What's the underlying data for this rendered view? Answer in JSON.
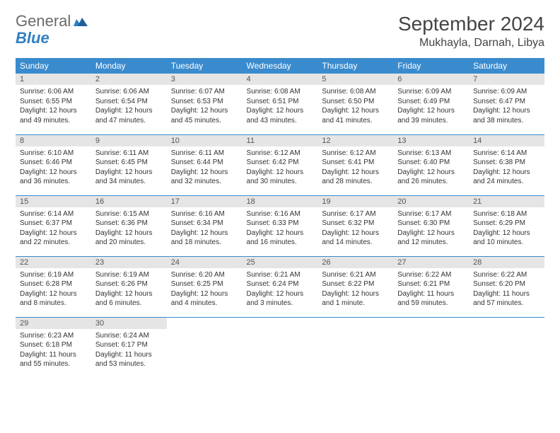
{
  "logo": {
    "word1": "General",
    "word2": "Blue"
  },
  "title": "September 2024",
  "location": "Mukhayla, Darnah, Libya",
  "colors": {
    "header_bg": "#3a8bce",
    "header_text": "#ffffff",
    "daynum_bg": "#e5e5e5",
    "rule": "#3a8bce",
    "logo_gray": "#6a6a6a",
    "logo_blue": "#2f7fc2",
    "body_text": "#333333",
    "background": "#ffffff"
  },
  "typography": {
    "month_title_size_pt": 21,
    "location_size_pt": 12,
    "dayhead_size_pt": 9,
    "daynum_size_pt": 8,
    "info_size_pt": 7.5
  },
  "weekdays": [
    "Sunday",
    "Monday",
    "Tuesday",
    "Wednesday",
    "Thursday",
    "Friday",
    "Saturday"
  ],
  "weeks": [
    [
      {
        "n": "1",
        "sunrise": "6:06 AM",
        "sunset": "6:55 PM",
        "day_h": "12",
        "day_m": "49"
      },
      {
        "n": "2",
        "sunrise": "6:06 AM",
        "sunset": "6:54 PM",
        "day_h": "12",
        "day_m": "47"
      },
      {
        "n": "3",
        "sunrise": "6:07 AM",
        "sunset": "6:53 PM",
        "day_h": "12",
        "day_m": "45"
      },
      {
        "n": "4",
        "sunrise": "6:08 AM",
        "sunset": "6:51 PM",
        "day_h": "12",
        "day_m": "43"
      },
      {
        "n": "5",
        "sunrise": "6:08 AM",
        "sunset": "6:50 PM",
        "day_h": "12",
        "day_m": "41"
      },
      {
        "n": "6",
        "sunrise": "6:09 AM",
        "sunset": "6:49 PM",
        "day_h": "12",
        "day_m": "39"
      },
      {
        "n": "7",
        "sunrise": "6:09 AM",
        "sunset": "6:47 PM",
        "day_h": "12",
        "day_m": "38"
      }
    ],
    [
      {
        "n": "8",
        "sunrise": "6:10 AM",
        "sunset": "6:46 PM",
        "day_h": "12",
        "day_m": "36"
      },
      {
        "n": "9",
        "sunrise": "6:11 AM",
        "sunset": "6:45 PM",
        "day_h": "12",
        "day_m": "34"
      },
      {
        "n": "10",
        "sunrise": "6:11 AM",
        "sunset": "6:44 PM",
        "day_h": "12",
        "day_m": "32"
      },
      {
        "n": "11",
        "sunrise": "6:12 AM",
        "sunset": "6:42 PM",
        "day_h": "12",
        "day_m": "30"
      },
      {
        "n": "12",
        "sunrise": "6:12 AM",
        "sunset": "6:41 PM",
        "day_h": "12",
        "day_m": "28"
      },
      {
        "n": "13",
        "sunrise": "6:13 AM",
        "sunset": "6:40 PM",
        "day_h": "12",
        "day_m": "26"
      },
      {
        "n": "14",
        "sunrise": "6:14 AM",
        "sunset": "6:38 PM",
        "day_h": "12",
        "day_m": "24"
      }
    ],
    [
      {
        "n": "15",
        "sunrise": "6:14 AM",
        "sunset": "6:37 PM",
        "day_h": "12",
        "day_m": "22"
      },
      {
        "n": "16",
        "sunrise": "6:15 AM",
        "sunset": "6:36 PM",
        "day_h": "12",
        "day_m": "20"
      },
      {
        "n": "17",
        "sunrise": "6:16 AM",
        "sunset": "6:34 PM",
        "day_h": "12",
        "day_m": "18"
      },
      {
        "n": "18",
        "sunrise": "6:16 AM",
        "sunset": "6:33 PM",
        "day_h": "12",
        "day_m": "16"
      },
      {
        "n": "19",
        "sunrise": "6:17 AM",
        "sunset": "6:32 PM",
        "day_h": "12",
        "day_m": "14"
      },
      {
        "n": "20",
        "sunrise": "6:17 AM",
        "sunset": "6:30 PM",
        "day_h": "12",
        "day_m": "12"
      },
      {
        "n": "21",
        "sunrise": "6:18 AM",
        "sunset": "6:29 PM",
        "day_h": "12",
        "day_m": "10"
      }
    ],
    [
      {
        "n": "22",
        "sunrise": "6:19 AM",
        "sunset": "6:28 PM",
        "day_h": "12",
        "day_m": "8"
      },
      {
        "n": "23",
        "sunrise": "6:19 AM",
        "sunset": "6:26 PM",
        "day_h": "12",
        "day_m": "6"
      },
      {
        "n": "24",
        "sunrise": "6:20 AM",
        "sunset": "6:25 PM",
        "day_h": "12",
        "day_m": "4"
      },
      {
        "n": "25",
        "sunrise": "6:21 AM",
        "sunset": "6:24 PM",
        "day_h": "12",
        "day_m": "3"
      },
      {
        "n": "26",
        "sunrise": "6:21 AM",
        "sunset": "6:22 PM",
        "day_h": "12",
        "day_m": "1"
      },
      {
        "n": "27",
        "sunrise": "6:22 AM",
        "sunset": "6:21 PM",
        "day_h": "11",
        "day_m": "59"
      },
      {
        "n": "28",
        "sunrise": "6:22 AM",
        "sunset": "6:20 PM",
        "day_h": "11",
        "day_m": "57"
      }
    ],
    [
      {
        "n": "29",
        "sunrise": "6:23 AM",
        "sunset": "6:18 PM",
        "day_h": "11",
        "day_m": "55"
      },
      {
        "n": "30",
        "sunrise": "6:24 AM",
        "sunset": "6:17 PM",
        "day_h": "11",
        "day_m": "53"
      },
      null,
      null,
      null,
      null,
      null
    ]
  ]
}
